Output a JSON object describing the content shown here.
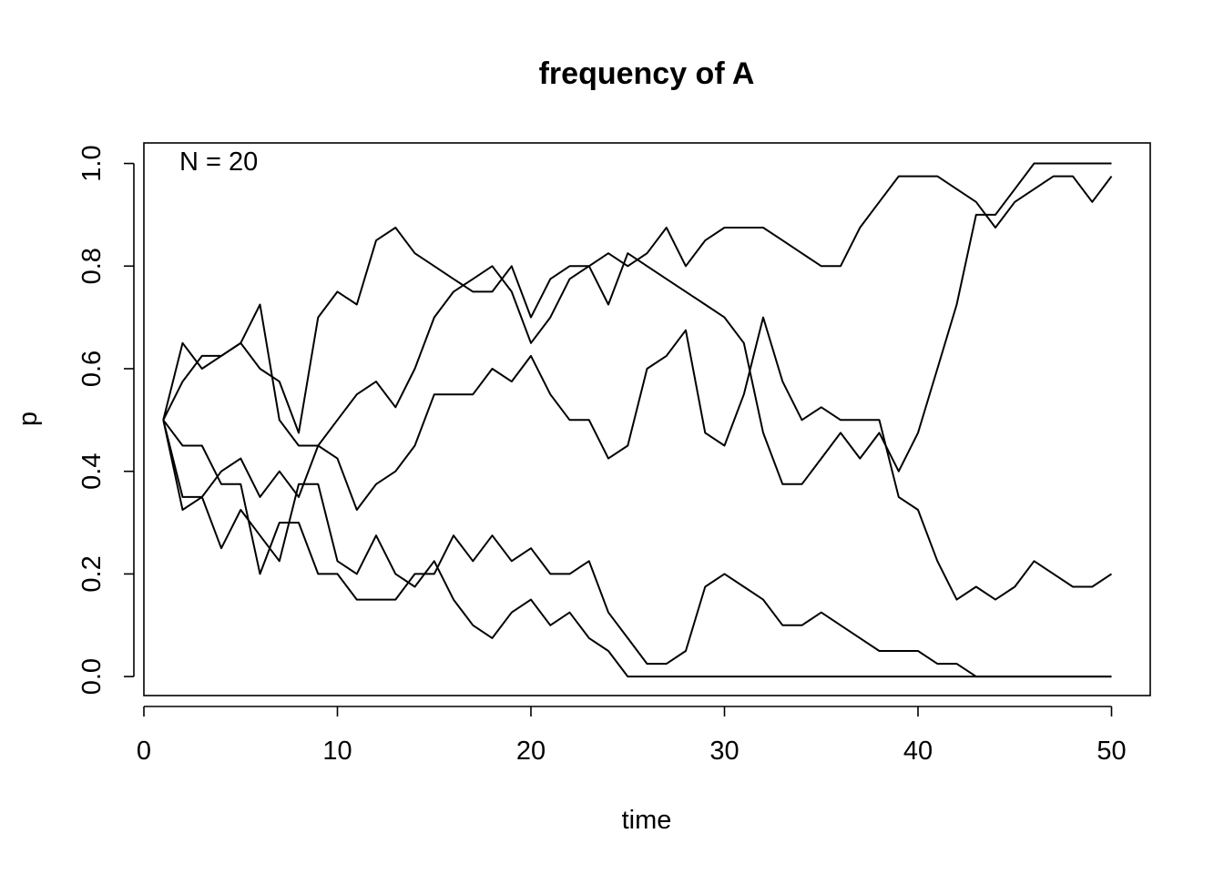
{
  "chart_data": {
    "type": "line",
    "title": "frequency of A",
    "xlabel": "time",
    "ylabel": "p",
    "annotation": "N = 20",
    "xlim": [
      0,
      52.0
    ],
    "ylim": [
      -0.037,
      1.04
    ],
    "x_ticks": [
      0,
      10,
      20,
      30,
      40,
      50
    ],
    "y_ticks": [
      0.0,
      0.2,
      0.4,
      0.6,
      0.8,
      1.0
    ],
    "x_tick_labels": [
      "0",
      "10",
      "20",
      "30",
      "40",
      "50"
    ],
    "y_tick_labels": [
      "0.0",
      "0.2",
      "0.4",
      "0.6",
      "0.8",
      "1.0"
    ],
    "grid": false,
    "line_color": "#000000",
    "x": [
      1,
      2,
      3,
      4,
      5,
      6,
      7,
      8,
      9,
      10,
      11,
      12,
      13,
      14,
      15,
      16,
      17,
      18,
      19,
      20,
      21,
      22,
      23,
      24,
      25,
      26,
      27,
      28,
      29,
      30,
      31,
      32,
      33,
      34,
      35,
      36,
      37,
      38,
      39,
      40,
      41,
      42,
      43,
      44,
      45,
      46,
      47,
      48,
      49,
      50
    ],
    "series": [
      {
        "values": [
          0.5,
          0.65,
          0.6,
          0.625,
          0.65,
          0.6,
          0.575,
          0.475,
          0.7,
          0.75,
          0.725,
          0.85,
          0.875,
          0.825,
          0.8,
          0.775,
          0.75,
          0.75,
          0.8,
          0.7,
          0.775,
          0.8,
          0.8,
          0.725,
          0.825,
          0.8,
          0.775,
          0.75,
          0.725,
          0.7,
          0.65,
          0.475,
          0.375,
          0.375,
          0.425,
          0.475,
          0.425,
          0.475,
          0.4,
          0.475,
          0.6,
          0.725,
          0.9,
          0.9,
          0.95,
          1.0,
          1.0,
          1.0,
          1.0,
          1.0
        ]
      },
      {
        "values": [
          0.5,
          0.575,
          0.625,
          0.625,
          0.65,
          0.725,
          0.5,
          0.45,
          0.45,
          0.425,
          0.325,
          0.375,
          0.4,
          0.45,
          0.55,
          0.55,
          0.55,
          0.6,
          0.575,
          0.625,
          0.55,
          0.5,
          0.5,
          0.425,
          0.45,
          0.6,
          0.625,
          0.675,
          0.475,
          0.45,
          0.55,
          0.7,
          0.575,
          0.5,
          0.525,
          0.5,
          0.5,
          0.5,
          0.35,
          0.325,
          0.225,
          0.15,
          0.175,
          0.15,
          0.175,
          0.225,
          0.2,
          0.175,
          0.175,
          0.2
        ]
      },
      {
        "values": [
          0.5,
          0.45,
          0.45,
          0.375,
          0.375,
          0.2,
          0.3,
          0.3,
          0.2,
          0.2,
          0.15,
          0.15,
          0.15,
          0.2,
          0.2,
          0.275,
          0.225,
          0.275,
          0.225,
          0.25,
          0.2,
          0.2,
          0.225,
          0.125,
          0.075,
          0.025,
          0.025,
          0.05,
          0.175,
          0.2,
          0.175,
          0.15,
          0.1,
          0.1,
          0.125,
          0.1,
          0.075,
          0.05,
          0.05,
          0.05,
          0.025,
          0.025,
          0.0,
          0.0,
          0.0,
          0.0,
          0.0,
          0.0,
          0.0,
          0.0
        ]
      },
      {
        "values": [
          0.5,
          0.35,
          0.35,
          0.25,
          0.325,
          0.275,
          0.225,
          0.375,
          0.375,
          0.225,
          0.2,
          0.275,
          0.2,
          0.175,
          0.225,
          0.15,
          0.1,
          0.075,
          0.125,
          0.15,
          0.1,
          0.125,
          0.075,
          0.05,
          0.0,
          0.0,
          0.0,
          0.0,
          0.0,
          0.0,
          0.0,
          0.0,
          0.0,
          0.0,
          0.0,
          0.0,
          0.0,
          0.0,
          0.0,
          0.0,
          0.0,
          0.0,
          0.0,
          0.0,
          0.0,
          0.0,
          0.0,
          0.0,
          0.0,
          0.0
        ]
      },
      {
        "values": [
          0.5,
          0.325,
          0.35,
          0.4,
          0.425,
          0.35,
          0.4,
          0.35,
          0.45,
          0.5,
          0.55,
          0.575,
          0.525,
          0.6,
          0.7,
          0.75,
          0.775,
          0.8,
          0.75,
          0.65,
          0.7,
          0.775,
          0.8,
          0.825,
          0.8,
          0.825,
          0.875,
          0.8,
          0.85,
          0.875,
          0.875,
          0.875,
          0.85,
          0.825,
          0.8,
          0.8,
          0.875,
          0.925,
          0.975,
          0.975,
          0.975,
          0.95,
          0.925,
          0.875,
          0.925,
          0.95,
          0.975,
          0.975,
          0.925,
          0.975
        ]
      }
    ]
  }
}
